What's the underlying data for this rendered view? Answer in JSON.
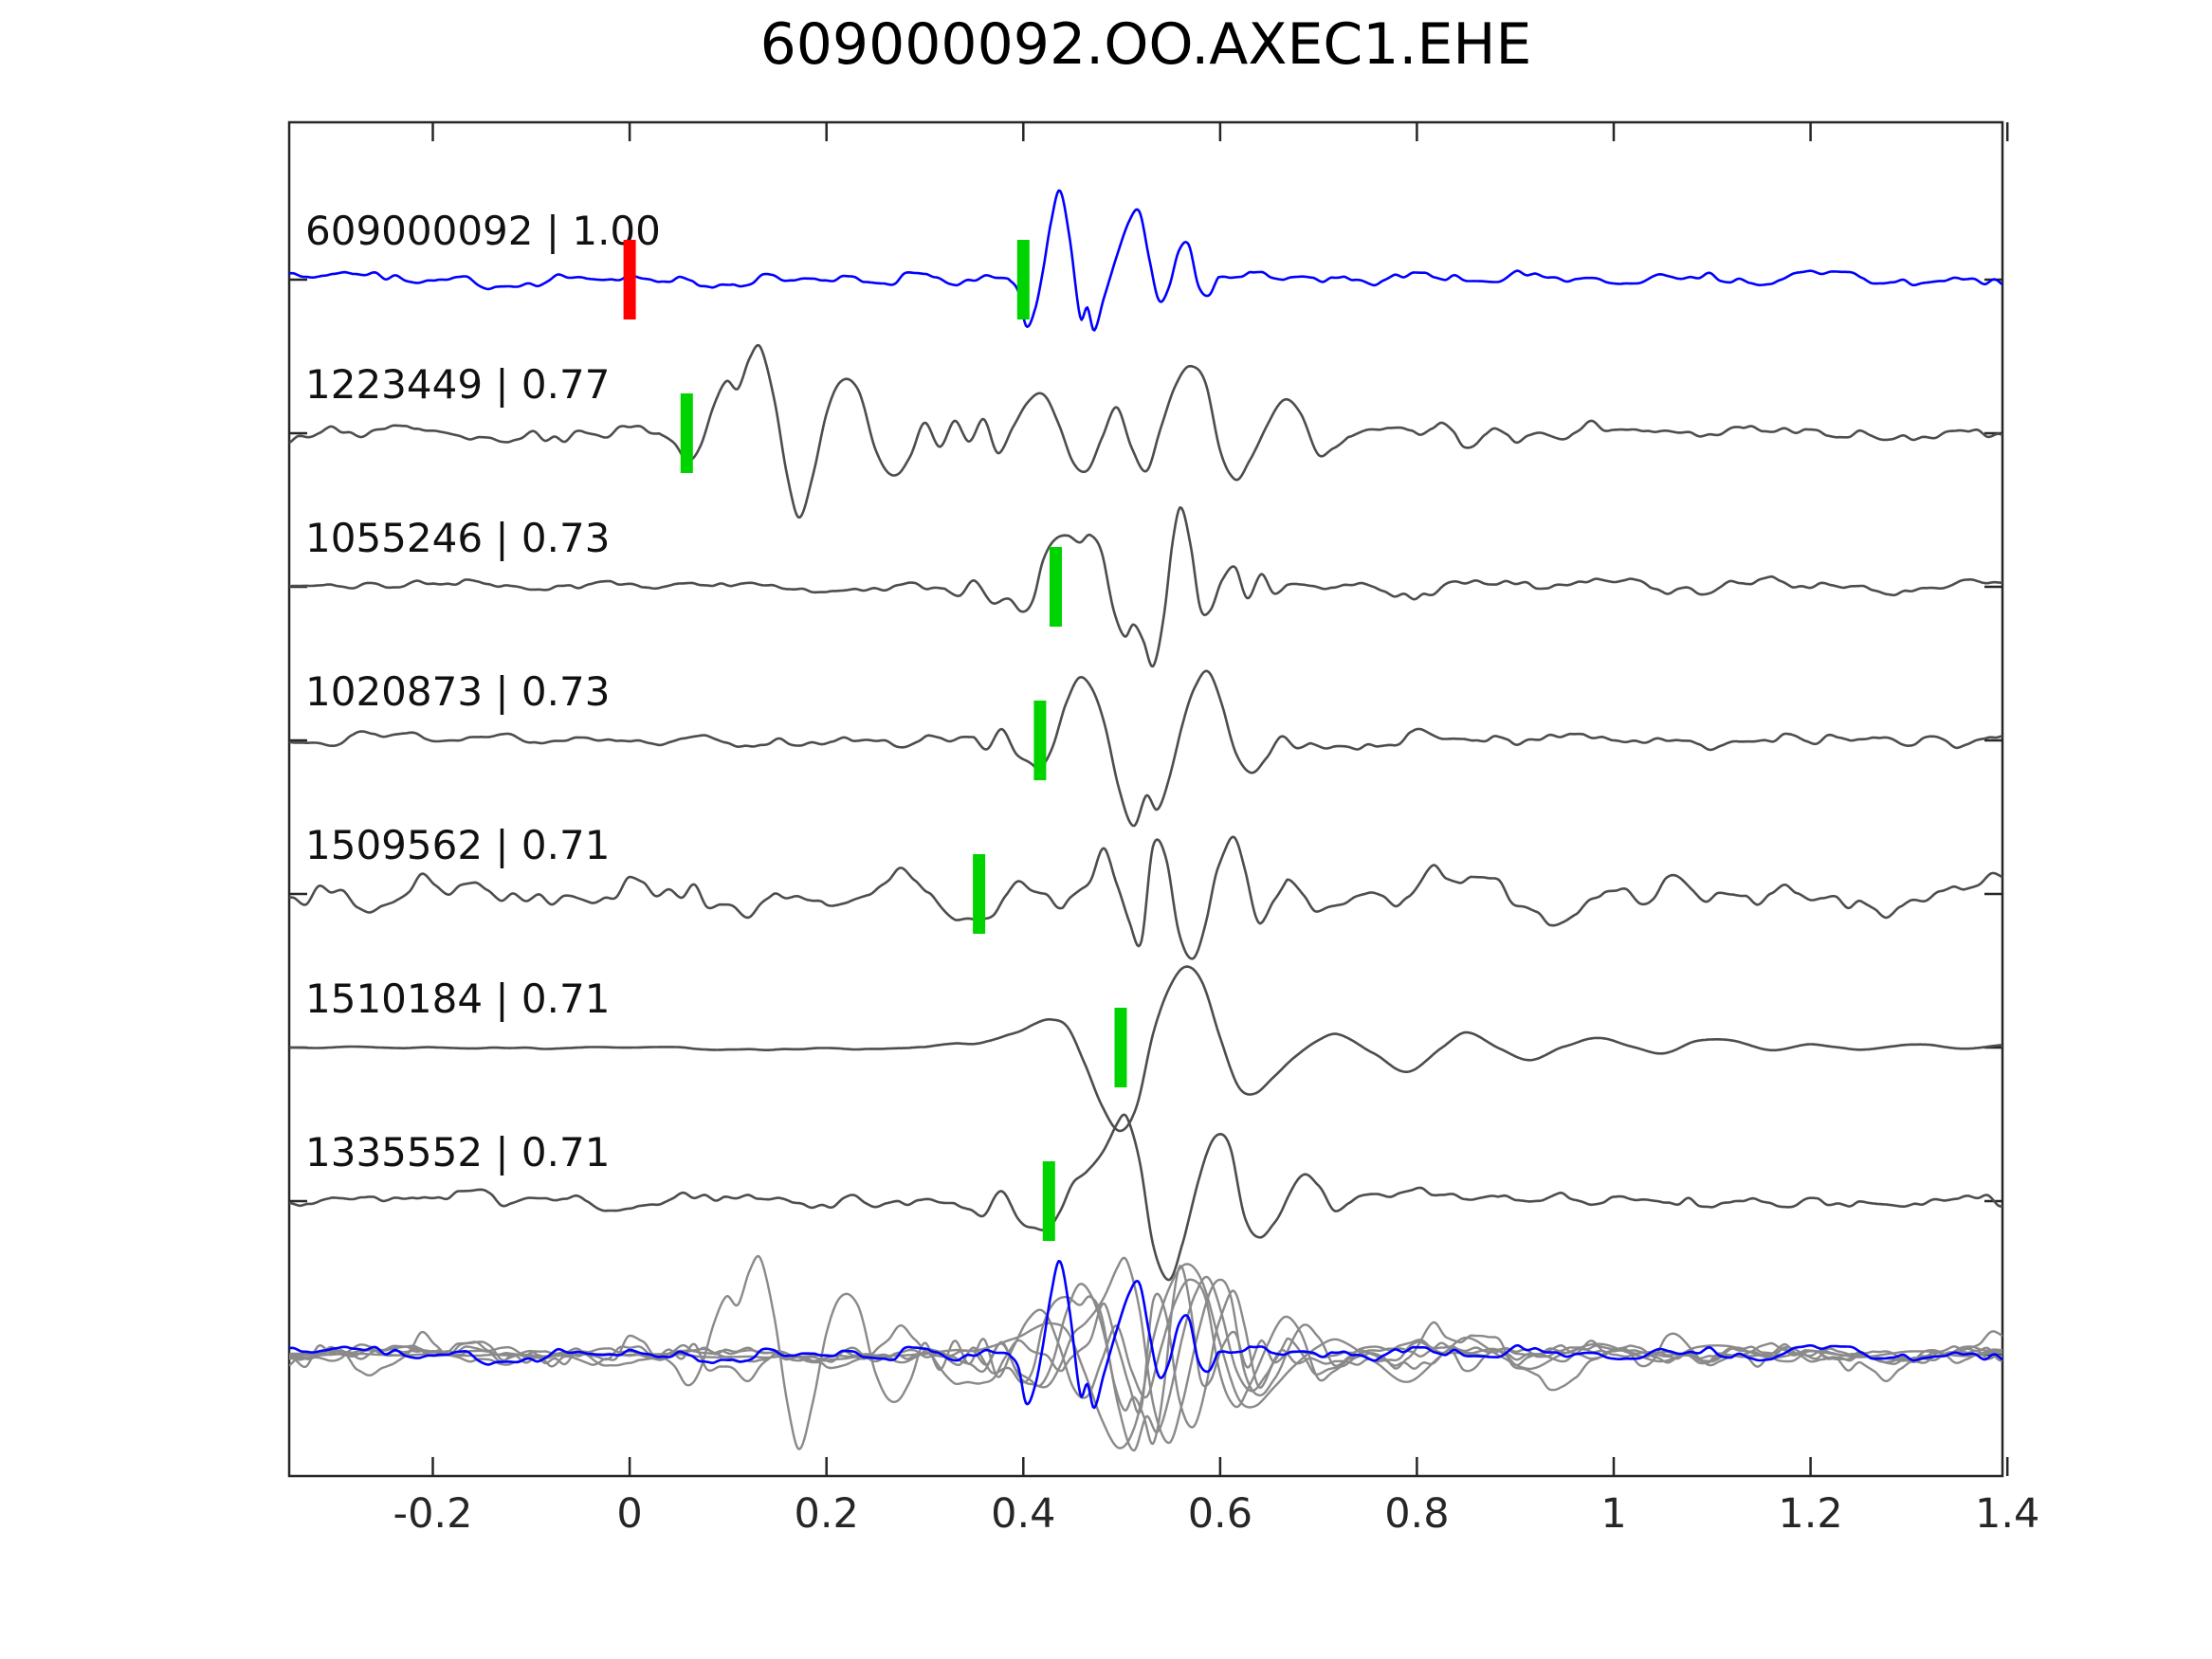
{
  "title": "609000092.OO.AXEC1.EHE",
  "chart_data": {
    "type": "line",
    "title": "609000092.OO.AXEC1.EHE",
    "subtitle": "",
    "xlabel": "",
    "ylabel": "",
    "xlim": [
      -0.346,
      1.395
    ],
    "x_ticks": [
      -0.2,
      0,
      0.2,
      0.4,
      0.6,
      0.8,
      1,
      1.2,
      1.4
    ],
    "x_tick_labels": [
      "-0.2",
      "0",
      "0.2",
      "0.4",
      "0.6",
      "0.8",
      "1",
      "1.2",
      "1.4"
    ],
    "grid": false,
    "legend": "none",
    "colors": {
      "template_blue": "#0000ff",
      "trace_gray": "#4d4d4d",
      "stack_gray": "#8a8a8a",
      "pick_green": "#00d400",
      "origin_red": "#ff0000",
      "frame": "#262626"
    },
    "markers": {
      "green_meaning": "pick time per detection",
      "red_meaning": "template origin time at 0"
    },
    "rows": [
      {
        "id": "609000092",
        "correlation": "1.00",
        "label": "609000092 | 1.00",
        "color": "#0000ff",
        "pick": 0.4,
        "origin_marker": 0.0,
        "seed": 3,
        "freq": 42,
        "noise_env": [
          [
            -0.346,
            11
          ],
          [
            0.37,
            11
          ],
          [
            0.39,
            3
          ],
          [
            0.6,
            3
          ],
          [
            0.63,
            12
          ],
          [
            0.8,
            11
          ],
          [
            1.395,
            10
          ]
        ],
        "keys": [
          [
            0.385,
            0
          ],
          [
            0.395,
            -12
          ],
          [
            0.403,
            -48
          ],
          [
            0.412,
            -30
          ],
          [
            0.42,
            10
          ],
          [
            0.428,
            60
          ],
          [
            0.437,
            95
          ],
          [
            0.447,
            45
          ],
          [
            0.458,
            -40
          ],
          [
            0.465,
            -30
          ],
          [
            0.472,
            -55
          ],
          [
            0.482,
            -20
          ],
          [
            0.495,
            25
          ],
          [
            0.508,
            62
          ],
          [
            0.518,
            70
          ],
          [
            0.528,
            20
          ],
          [
            0.538,
            -25
          ],
          [
            0.548,
            -10
          ],
          [
            0.558,
            28
          ],
          [
            0.568,
            36
          ],
          [
            0.578,
            -8
          ],
          [
            0.588,
            -18
          ],
          [
            0.598,
            0
          ]
        ]
      },
      {
        "id": "1223449",
        "correlation": "0.77",
        "label": "1223449 | 0.77",
        "color": "#4d4d4d",
        "pick": 0.058,
        "seed": 17,
        "freq": 40,
        "noise_env": [
          [
            -0.346,
            15
          ],
          [
            0.02,
            15
          ],
          [
            0.04,
            5
          ],
          [
            0.73,
            5
          ],
          [
            0.77,
            16
          ],
          [
            1.395,
            14
          ]
        ],
        "keys": [
          [
            0.03,
            0
          ],
          [
            0.045,
            -12
          ],
          [
            0.058,
            -30
          ],
          [
            0.072,
            -12
          ],
          [
            0.085,
            28
          ],
          [
            0.098,
            55
          ],
          [
            0.11,
            48
          ],
          [
            0.122,
            80
          ],
          [
            0.133,
            90
          ],
          [
            0.147,
            35
          ],
          [
            0.16,
            -45
          ],
          [
            0.172,
            -88
          ],
          [
            0.186,
            -45
          ],
          [
            0.2,
            20
          ],
          [
            0.215,
            55
          ],
          [
            0.232,
            48
          ],
          [
            0.25,
            -15
          ],
          [
            0.268,
            -42
          ],
          [
            0.285,
            -25
          ],
          [
            0.3,
            10
          ],
          [
            0.315,
            -12
          ],
          [
            0.33,
            18
          ],
          [
            0.345,
            -8
          ],
          [
            0.36,
            15
          ],
          [
            0.375,
            -18
          ],
          [
            0.39,
            10
          ],
          [
            0.405,
            35
          ],
          [
            0.42,
            42
          ],
          [
            0.435,
            15
          ],
          [
            0.45,
            -28
          ],
          [
            0.465,
            -38
          ],
          [
            0.48,
            -5
          ],
          [
            0.495,
            28
          ],
          [
            0.51,
            -15
          ],
          [
            0.525,
            -42
          ],
          [
            0.54,
            5
          ],
          [
            0.555,
            50
          ],
          [
            0.57,
            72
          ],
          [
            0.585,
            55
          ],
          [
            0.6,
            -20
          ],
          [
            0.615,
            -48
          ],
          [
            0.63,
            -28
          ],
          [
            0.648,
            12
          ],
          [
            0.665,
            38
          ],
          [
            0.682,
            22
          ],
          [
            0.7,
            -22
          ],
          [
            0.715,
            -12
          ],
          [
            0.73,
            0
          ]
        ]
      },
      {
        "id": "1055246",
        "correlation": "0.73",
        "label": "1055246 | 0.73",
        "color": "#4d4d4d",
        "pick": 0.433,
        "seed": 29,
        "freq": 42,
        "noise_env": [
          [
            -0.346,
            8
          ],
          [
            0.3,
            8
          ],
          [
            0.33,
            4
          ],
          [
            0.67,
            4
          ],
          [
            0.71,
            12
          ],
          [
            0.95,
            12
          ],
          [
            1.395,
            10
          ]
        ],
        "keys": [
          [
            0.32,
            0
          ],
          [
            0.335,
            -8
          ],
          [
            0.35,
            10
          ],
          [
            0.368,
            -14
          ],
          [
            0.385,
            -10
          ],
          [
            0.398,
            -24
          ],
          [
            0.41,
            -12
          ],
          [
            0.42,
            28
          ],
          [
            0.432,
            50
          ],
          [
            0.445,
            55
          ],
          [
            0.458,
            48
          ],
          [
            0.468,
            54
          ],
          [
            0.48,
            35
          ],
          [
            0.492,
            -25
          ],
          [
            0.503,
            -52
          ],
          [
            0.512,
            -40
          ],
          [
            0.522,
            -58
          ],
          [
            0.532,
            -84
          ],
          [
            0.543,
            -30
          ],
          [
            0.552,
            48
          ],
          [
            0.56,
            84
          ],
          [
            0.57,
            45
          ],
          [
            0.58,
            -20
          ],
          [
            0.59,
            -22
          ],
          [
            0.602,
            8
          ],
          [
            0.615,
            24
          ],
          [
            0.628,
            -10
          ],
          [
            0.642,
            16
          ],
          [
            0.655,
            -6
          ],
          [
            0.668,
            0
          ]
        ]
      },
      {
        "id": "1020873",
        "correlation": "0.73",
        "label": "1020873 | 0.73",
        "color": "#4d4d4d",
        "pick": 0.417,
        "seed": 41,
        "freq": 40,
        "noise_env": [
          [
            -0.346,
            9
          ],
          [
            0.33,
            9
          ],
          [
            0.36,
            4
          ],
          [
            0.69,
            4
          ],
          [
            0.73,
            12
          ],
          [
            1.395,
            10
          ]
        ],
        "keys": [
          [
            0.35,
            0
          ],
          [
            0.363,
            -10
          ],
          [
            0.378,
            12
          ],
          [
            0.393,
            -16
          ],
          [
            0.408,
            -26
          ],
          [
            0.418,
            -30
          ],
          [
            0.43,
            -8
          ],
          [
            0.443,
            38
          ],
          [
            0.457,
            66
          ],
          [
            0.47,
            56
          ],
          [
            0.483,
            18
          ],
          [
            0.497,
            -48
          ],
          [
            0.512,
            -90
          ],
          [
            0.525,
            -58
          ],
          [
            0.536,
            -72
          ],
          [
            0.548,
            -38
          ],
          [
            0.562,
            18
          ],
          [
            0.575,
            58
          ],
          [
            0.588,
            72
          ],
          [
            0.602,
            38
          ],
          [
            0.617,
            -18
          ],
          [
            0.632,
            -36
          ],
          [
            0.647,
            -18
          ],
          [
            0.662,
            4
          ],
          [
            0.678,
            -8
          ],
          [
            0.692,
            0
          ]
        ]
      },
      {
        "id": "1509562",
        "correlation": "0.71",
        "label": "1509562 | 0.71",
        "color": "#4d4d4d",
        "pick": 0.355,
        "seed": 53,
        "freq": 33,
        "noise_env": [
          [
            -0.346,
            28
          ],
          [
            0.44,
            28
          ],
          [
            0.46,
            17
          ],
          [
            0.64,
            17
          ],
          [
            0.67,
            30
          ],
          [
            1.395,
            28
          ]
        ],
        "keys": [
          [
            0.44,
            0
          ],
          [
            0.455,
            15
          ],
          [
            0.468,
            22
          ],
          [
            0.482,
            52
          ],
          [
            0.495,
            10
          ],
          [
            0.508,
            -35
          ],
          [
            0.52,
            -58
          ],
          [
            0.532,
            40
          ],
          [
            0.545,
            28
          ],
          [
            0.558,
            -45
          ],
          [
            0.572,
            -68
          ],
          [
            0.585,
            -30
          ],
          [
            0.598,
            35
          ],
          [
            0.612,
            68
          ],
          [
            0.625,
            25
          ],
          [
            0.64,
            -38
          ],
          [
            0.655,
            -18
          ],
          [
            0.668,
            0
          ]
        ]
      },
      {
        "id": "1510184",
        "correlation": "0.71",
        "label": "1510184 | 0.71",
        "color": "#4d4d4d",
        "pick": 0.499,
        "seed": 67,
        "freq": 25,
        "noise_env": [
          [
            -0.346,
            1.5
          ],
          [
            0.15,
            2.5
          ],
          [
            0.3,
            3
          ],
          [
            0.42,
            2
          ],
          [
            0.7,
            1.5
          ],
          [
            1.395,
            1.5
          ]
        ],
        "keys": [
          [
            0.3,
            0
          ],
          [
            0.33,
            4
          ],
          [
            0.36,
            6
          ],
          [
            0.39,
            16
          ],
          [
            0.412,
            26
          ],
          [
            0.428,
            30
          ],
          [
            0.445,
            22
          ],
          [
            0.462,
            -16
          ],
          [
            0.48,
            -62
          ],
          [
            0.498,
            -88
          ],
          [
            0.515,
            -62
          ],
          [
            0.532,
            15
          ],
          [
            0.548,
            62
          ],
          [
            0.565,
            85
          ],
          [
            0.582,
            68
          ],
          [
            0.6,
            10
          ],
          [
            0.618,
            -40
          ],
          [
            0.635,
            -48
          ],
          [
            0.655,
            -30
          ],
          [
            0.675,
            -10
          ],
          [
            0.7,
            8
          ],
          [
            0.72,
            14
          ],
          [
            0.755,
            -6
          ],
          [
            0.79,
            -26
          ],
          [
            0.825,
            0
          ],
          [
            0.85,
            16
          ],
          [
            0.885,
            -2
          ],
          [
            0.915,
            -13
          ],
          [
            0.95,
            2
          ],
          [
            0.985,
            10
          ],
          [
            1.02,
            0
          ],
          [
            1.05,
            -7
          ],
          [
            1.085,
            6
          ],
          [
            1.12,
            8
          ],
          [
            1.16,
            -3
          ],
          [
            1.2,
            4
          ],
          [
            1.25,
            -2
          ],
          [
            1.3,
            3
          ],
          [
            1.35,
            0
          ],
          [
            1.394,
            2
          ]
        ]
      },
      {
        "id": "1335552",
        "correlation": "0.71",
        "label": "1335552 | 0.71",
        "color": "#4d4d4d",
        "pick": 0.426,
        "seed": 79,
        "freq": 40,
        "noise_env": [
          [
            -0.346,
            11
          ],
          [
            0.31,
            11
          ],
          [
            0.34,
            6
          ],
          [
            0.72,
            5
          ],
          [
            0.76,
            14
          ],
          [
            0.95,
            12
          ],
          [
            1.395,
            10
          ]
        ],
        "keys": [
          [
            0.33,
            0
          ],
          [
            0.345,
            -8
          ],
          [
            0.36,
            -12
          ],
          [
            0.378,
            14
          ],
          [
            0.395,
            -18
          ],
          [
            0.412,
            -30
          ],
          [
            0.425,
            -34
          ],
          [
            0.438,
            -12
          ],
          [
            0.452,
            22
          ],
          [
            0.465,
            32
          ],
          [
            0.48,
            50
          ],
          [
            0.495,
            80
          ],
          [
            0.505,
            88
          ],
          [
            0.518,
            42
          ],
          [
            0.532,
            -48
          ],
          [
            0.548,
            -86
          ],
          [
            0.562,
            -45
          ],
          [
            0.578,
            25
          ],
          [
            0.595,
            68
          ],
          [
            0.61,
            56
          ],
          [
            0.625,
            -15
          ],
          [
            0.64,
            -40
          ],
          [
            0.655,
            -26
          ],
          [
            0.67,
            6
          ],
          [
            0.685,
            28
          ],
          [
            0.7,
            15
          ],
          [
            0.715,
            -8
          ],
          [
            0.73,
            0
          ]
        ]
      }
    ],
    "stack": {
      "description": "all detections overlaid with template",
      "gray_refs": [
        1,
        2,
        3,
        4,
        5,
        6
      ],
      "template_ref": 0,
      "gray_color": "#8a8a8a",
      "gray_scale": 1.12,
      "template_scale": 1.05
    }
  }
}
